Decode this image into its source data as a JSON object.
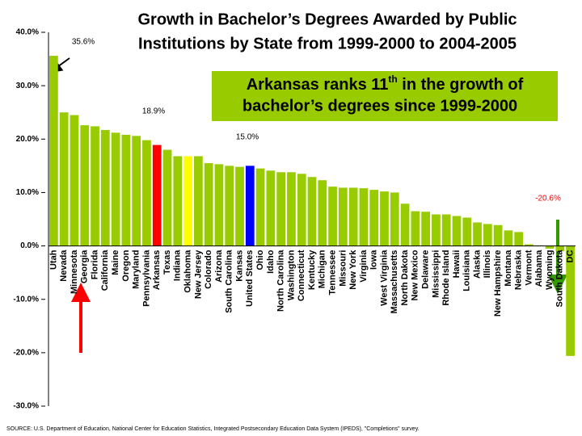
{
  "chart_data": {
    "type": "bar",
    "title": [
      "Growth in Bachelor’s Degrees Awarded by Public",
      "Institutions by State from 1999-2000 to 2004-2005"
    ],
    "callout": {
      "lines": [
        [
          "Arkansas ranks 11",
          "th",
          " in the growth of"
        ],
        [
          "bachelor’s degrees since 1999-2000"
        ]
      ],
      "color": "#99cc00"
    },
    "source": "SOURCE:  U.S. Department of Education, National Center for Education Statistics, Integrated Postsecondary Education Data System (IPEDS), \"Completions\" survey.",
    "categories": [
      "Utah",
      "Nevada",
      "Minnesota",
      "Georgia",
      "Florida",
      "California",
      "Maine",
      "Oregon",
      "Maryland",
      "Pennsylvania",
      "Arkansas",
      "Texas",
      "Indiana",
      "Oklahoma",
      "New Jersey",
      "Colorado",
      "Arizona",
      "South Carolina",
      "Kansas",
      "United States",
      "Ohio",
      "Idaho",
      "North Carolina",
      "Washington",
      "Connecticut",
      "Kentucky",
      "Michigan",
      "Tennessee",
      "Missouri",
      "New York",
      "Virginia",
      "Iowa",
      "West Virginia",
      "Massachusetts",
      "North Dakota",
      "New Mexico",
      "Delaware",
      "Mississippi",
      "Rhode Island",
      "Hawaii",
      "Louisiana",
      "Alaska",
      "Illinois",
      "New Hampshire",
      "Montana",
      "Nebraska",
      "Vermont",
      "Alabama",
      "Wyoming",
      "South Dakota",
      "DC"
    ],
    "values": [
      35.6,
      25.0,
      24.5,
      22.6,
      22.4,
      21.7,
      21.2,
      20.8,
      20.6,
      19.8,
      18.9,
      18.0,
      16.8,
      16.8,
      16.8,
      15.5,
      15.3,
      15.0,
      14.8,
      15.0,
      14.5,
      14.1,
      13.8,
      13.8,
      13.5,
      12.9,
      12.3,
      11.1,
      10.9,
      10.9,
      10.8,
      10.5,
      10.2,
      10.0,
      7.9,
      6.5,
      6.4,
      5.9,
      5.9,
      5.6,
      5.3,
      4.4,
      4.1,
      3.9,
      2.9,
      2.6,
      0.3,
      0.1,
      -0.5,
      -1.0,
      -20.6
    ],
    "value_labels": [
      "35.6%",
      null,
      null,
      null,
      null,
      null,
      null,
      null,
      null,
      null,
      "18.9%",
      null,
      null,
      null,
      null,
      null,
      null,
      null,
      null,
      "15.0%",
      null,
      null,
      null,
      null,
      null,
      null,
      null,
      null,
      null,
      null,
      null,
      null,
      null,
      null,
      null,
      null,
      null,
      null,
      null,
      null,
      null,
      null,
      null,
      null,
      null,
      null,
      null,
      null,
      null,
      null,
      "-20.6%"
    ],
    "colors": [
      "#99cc00",
      "#99cc00",
      "#99cc00",
      "#99cc00",
      "#99cc00",
      "#99cc00",
      "#99cc00",
      "#99cc00",
      "#99cc00",
      "#99cc00",
      "#ff0000",
      "#99cc00",
      "#99cc00",
      "#ffff00",
      "#99cc00",
      "#99cc00",
      "#99cc00",
      "#99cc00",
      "#99cc00",
      "#0000ff",
      "#99cc00",
      "#99cc00",
      "#99cc00",
      "#99cc00",
      "#99cc00",
      "#99cc00",
      "#99cc00",
      "#99cc00",
      "#99cc00",
      "#99cc00",
      "#99cc00",
      "#99cc00",
      "#99cc00",
      "#99cc00",
      "#99cc00",
      "#99cc00",
      "#99cc00",
      "#99cc00",
      "#99cc00",
      "#99cc00",
      "#99cc00",
      "#99cc00",
      "#99cc00",
      "#99cc00",
      "#99cc00",
      "#99cc00",
      "#99cc00",
      "#99cc00",
      "#99cc00",
      "#99cc00",
      "#99cc00"
    ],
    "ylim": [
      -30,
      40
    ],
    "yticks": [
      {
        "value": -30,
        "label": "-30.0%"
      },
      {
        "value": -20,
        "label": "-20.0%"
      },
      {
        "value": -10,
        "label": "-10.0%"
      },
      {
        "value": 0,
        "label": "0.0%"
      },
      {
        "value": 10,
        "label": "10.0%"
      },
      {
        "value": 20,
        "label": "20.0%"
      },
      {
        "value": 30,
        "label": "30.0%"
      },
      {
        "value": 40,
        "label": "40.0%"
      }
    ]
  }
}
